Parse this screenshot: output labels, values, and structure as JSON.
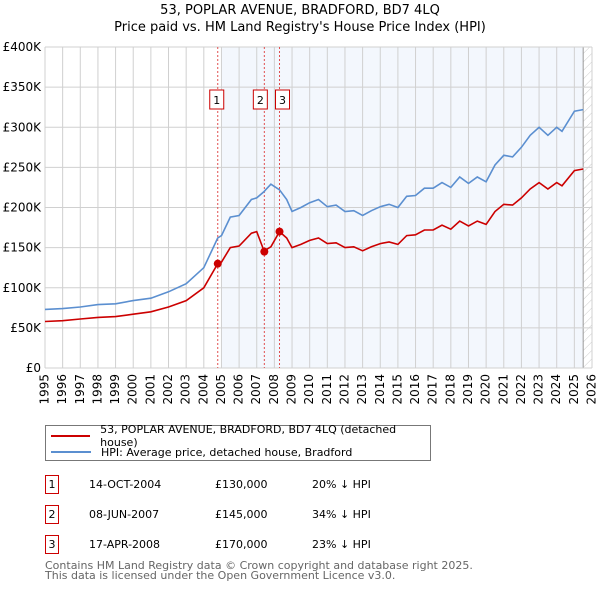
{
  "title": "53, POPLAR AVENUE, BRADFORD, BD7 4LQ",
  "subtitle": "Price paid vs. HM Land Registry's House Price Index (HPI)",
  "chart_data": {
    "type": "line",
    "title": "53, POPLAR AVENUE, BRADFORD, BD7 4LQ",
    "subtitle": "Price paid vs. HM Land Registry's House Price Index (HPI)",
    "xlim": [
      1995,
      2026
    ],
    "ylim": [
      0,
      400000
    ],
    "x_ticks": [
      "1995",
      "1996",
      "1997",
      "1998",
      "1999",
      "2000",
      "2001",
      "2002",
      "2003",
      "2004",
      "2005",
      "2006",
      "2007",
      "2008",
      "2009",
      "2010",
      "2011",
      "2012",
      "2013",
      "2014",
      "2015",
      "2016",
      "2017",
      "2018",
      "2019",
      "2020",
      "2021",
      "2022",
      "2023",
      "2024",
      "2025",
      "2026"
    ],
    "y_ticks": [
      {
        "v": 0,
        "label": "£0"
      },
      {
        "v": 50000,
        "label": "£50K"
      },
      {
        "v": 100000,
        "label": "£100K"
      },
      {
        "v": 150000,
        "label": "£150K"
      },
      {
        "v": 200000,
        "label": "£200K"
      },
      {
        "v": 250000,
        "label": "£250K"
      },
      {
        "v": 300000,
        "label": "£300K"
      },
      {
        "v": 350000,
        "label": "£350K"
      },
      {
        "v": 400000,
        "label": "£400K"
      }
    ],
    "grid": true,
    "shaded_from": 2005,
    "hatched_from": 2025.5,
    "x": [
      1995,
      1996,
      1997,
      1998,
      1999,
      2000,
      2001,
      2002,
      2003,
      2004,
      2004.79,
      2005,
      2005.5,
      2006,
      2006.7,
      2007,
      2007.43,
      2007.5,
      2007.8,
      2008.29,
      2008.7,
      2009,
      2009.5,
      2010,
      2010.5,
      2011,
      2011.5,
      2012,
      2012.5,
      2013,
      2013.5,
      2014,
      2014.5,
      2015,
      2015.5,
      2016,
      2016.5,
      2017,
      2017.5,
      2018,
      2018.5,
      2019,
      2019.5,
      2020,
      2020.5,
      2021,
      2021.5,
      2022,
      2022.5,
      2023,
      2023.5,
      2024,
      2024.3,
      2025,
      2025.5
    ],
    "series": [
      {
        "name": "53, POPLAR AVENUE, BRADFORD, BD7 4LQ (detached house)",
        "color": "#cc0000",
        "values_k": [
          58,
          59,
          61,
          63,
          64,
          67,
          70,
          76,
          84,
          100,
          130,
          132,
          150,
          152,
          168,
          170,
          145,
          147,
          151,
          170,
          162,
          150,
          154,
          159,
          162,
          155,
          156,
          150,
          151,
          146,
          151,
          155,
          157,
          154,
          165,
          166,
          172,
          172,
          178,
          173,
          183,
          177,
          183,
          179,
          195,
          204,
          203,
          212,
          223,
          231,
          223,
          231,
          227,
          246,
          248
        ]
      },
      {
        "name": "HPI: Average price, detached house, Bradford",
        "color": "#5b8fd0",
        "values_k": [
          73,
          74,
          76,
          79,
          80,
          84,
          87,
          95,
          105,
          125,
          162,
          165,
          188,
          190,
          210,
          212,
          220,
          222,
          229,
          222,
          210,
          195,
          200,
          206,
          210,
          201,
          203,
          195,
          196,
          190,
          196,
          201,
          204,
          200,
          214,
          215,
          224,
          224,
          231,
          225,
          238,
          230,
          238,
          232,
          253,
          265,
          263,
          275,
          290,
          300,
          290,
          300,
          295,
          320,
          322
        ]
      }
    ],
    "sales": [
      {
        "id": "1",
        "x": 2004.79,
        "price": 130000,
        "date": "14-OCT-2004",
        "price_label": "£130,000",
        "hpi_label": "20% ↓ HPI"
      },
      {
        "id": "2",
        "x": 2007.43,
        "price": 145000,
        "date": "08-JUN-2007",
        "price_label": "£145,000",
        "hpi_label": "34% ↓ HPI"
      },
      {
        "id": "3",
        "x": 2008.29,
        "price": 170000,
        "date": "17-APR-2008",
        "price_label": "£170,000",
        "hpi_label": "23% ↓ HPI"
      }
    ],
    "legend": "below"
  },
  "footer": {
    "line1": "Contains HM Land Registry data © Crown copyright and database right 2025.",
    "line2": "This data is licensed under the Open Government Licence v3.0."
  }
}
